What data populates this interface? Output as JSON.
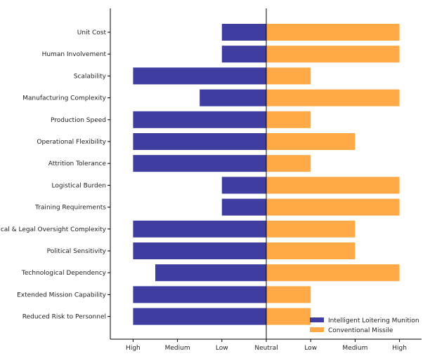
{
  "chart_data": {
    "type": "bar",
    "orientation": "horizontal-diverging",
    "title": "",
    "xlabel": "",
    "ylabel": "",
    "categories": [
      "Unit Cost",
      "Human Involvement",
      "Scalability",
      "Manufacturing Complexity",
      "Production Speed",
      "Operational Flexibility",
      "Attrition Tolerance",
      "Logistical Burden",
      "Training Requirements",
      "Ethical & Legal Oversight Complexity",
      "Political Sensitivity",
      "Technological Dependency",
      "Extended Mission Capability",
      "Reduced Risk to Personnel"
    ],
    "x_ticks": [
      "High",
      "Medium",
      "Low",
      "Neutral",
      "Low",
      "Medium",
      "High"
    ],
    "xlim": [
      -3,
      3
    ],
    "series": [
      {
        "name": "Intelligent Loitering Munition",
        "color": "#3f3da0",
        "values": [
          -1,
          -1,
          -3,
          -1.5,
          -3,
          -3,
          -3,
          -1,
          -1,
          -3,
          -3,
          -2.5,
          -3,
          -3
        ]
      },
      {
        "name": "Conventional Missile",
        "color": "#ffa947",
        "values": [
          3,
          3,
          1,
          3,
          1,
          2,
          1,
          3,
          3,
          2,
          2,
          3,
          1,
          1
        ]
      }
    ],
    "legend_position": "lower-right",
    "grid": false
  }
}
